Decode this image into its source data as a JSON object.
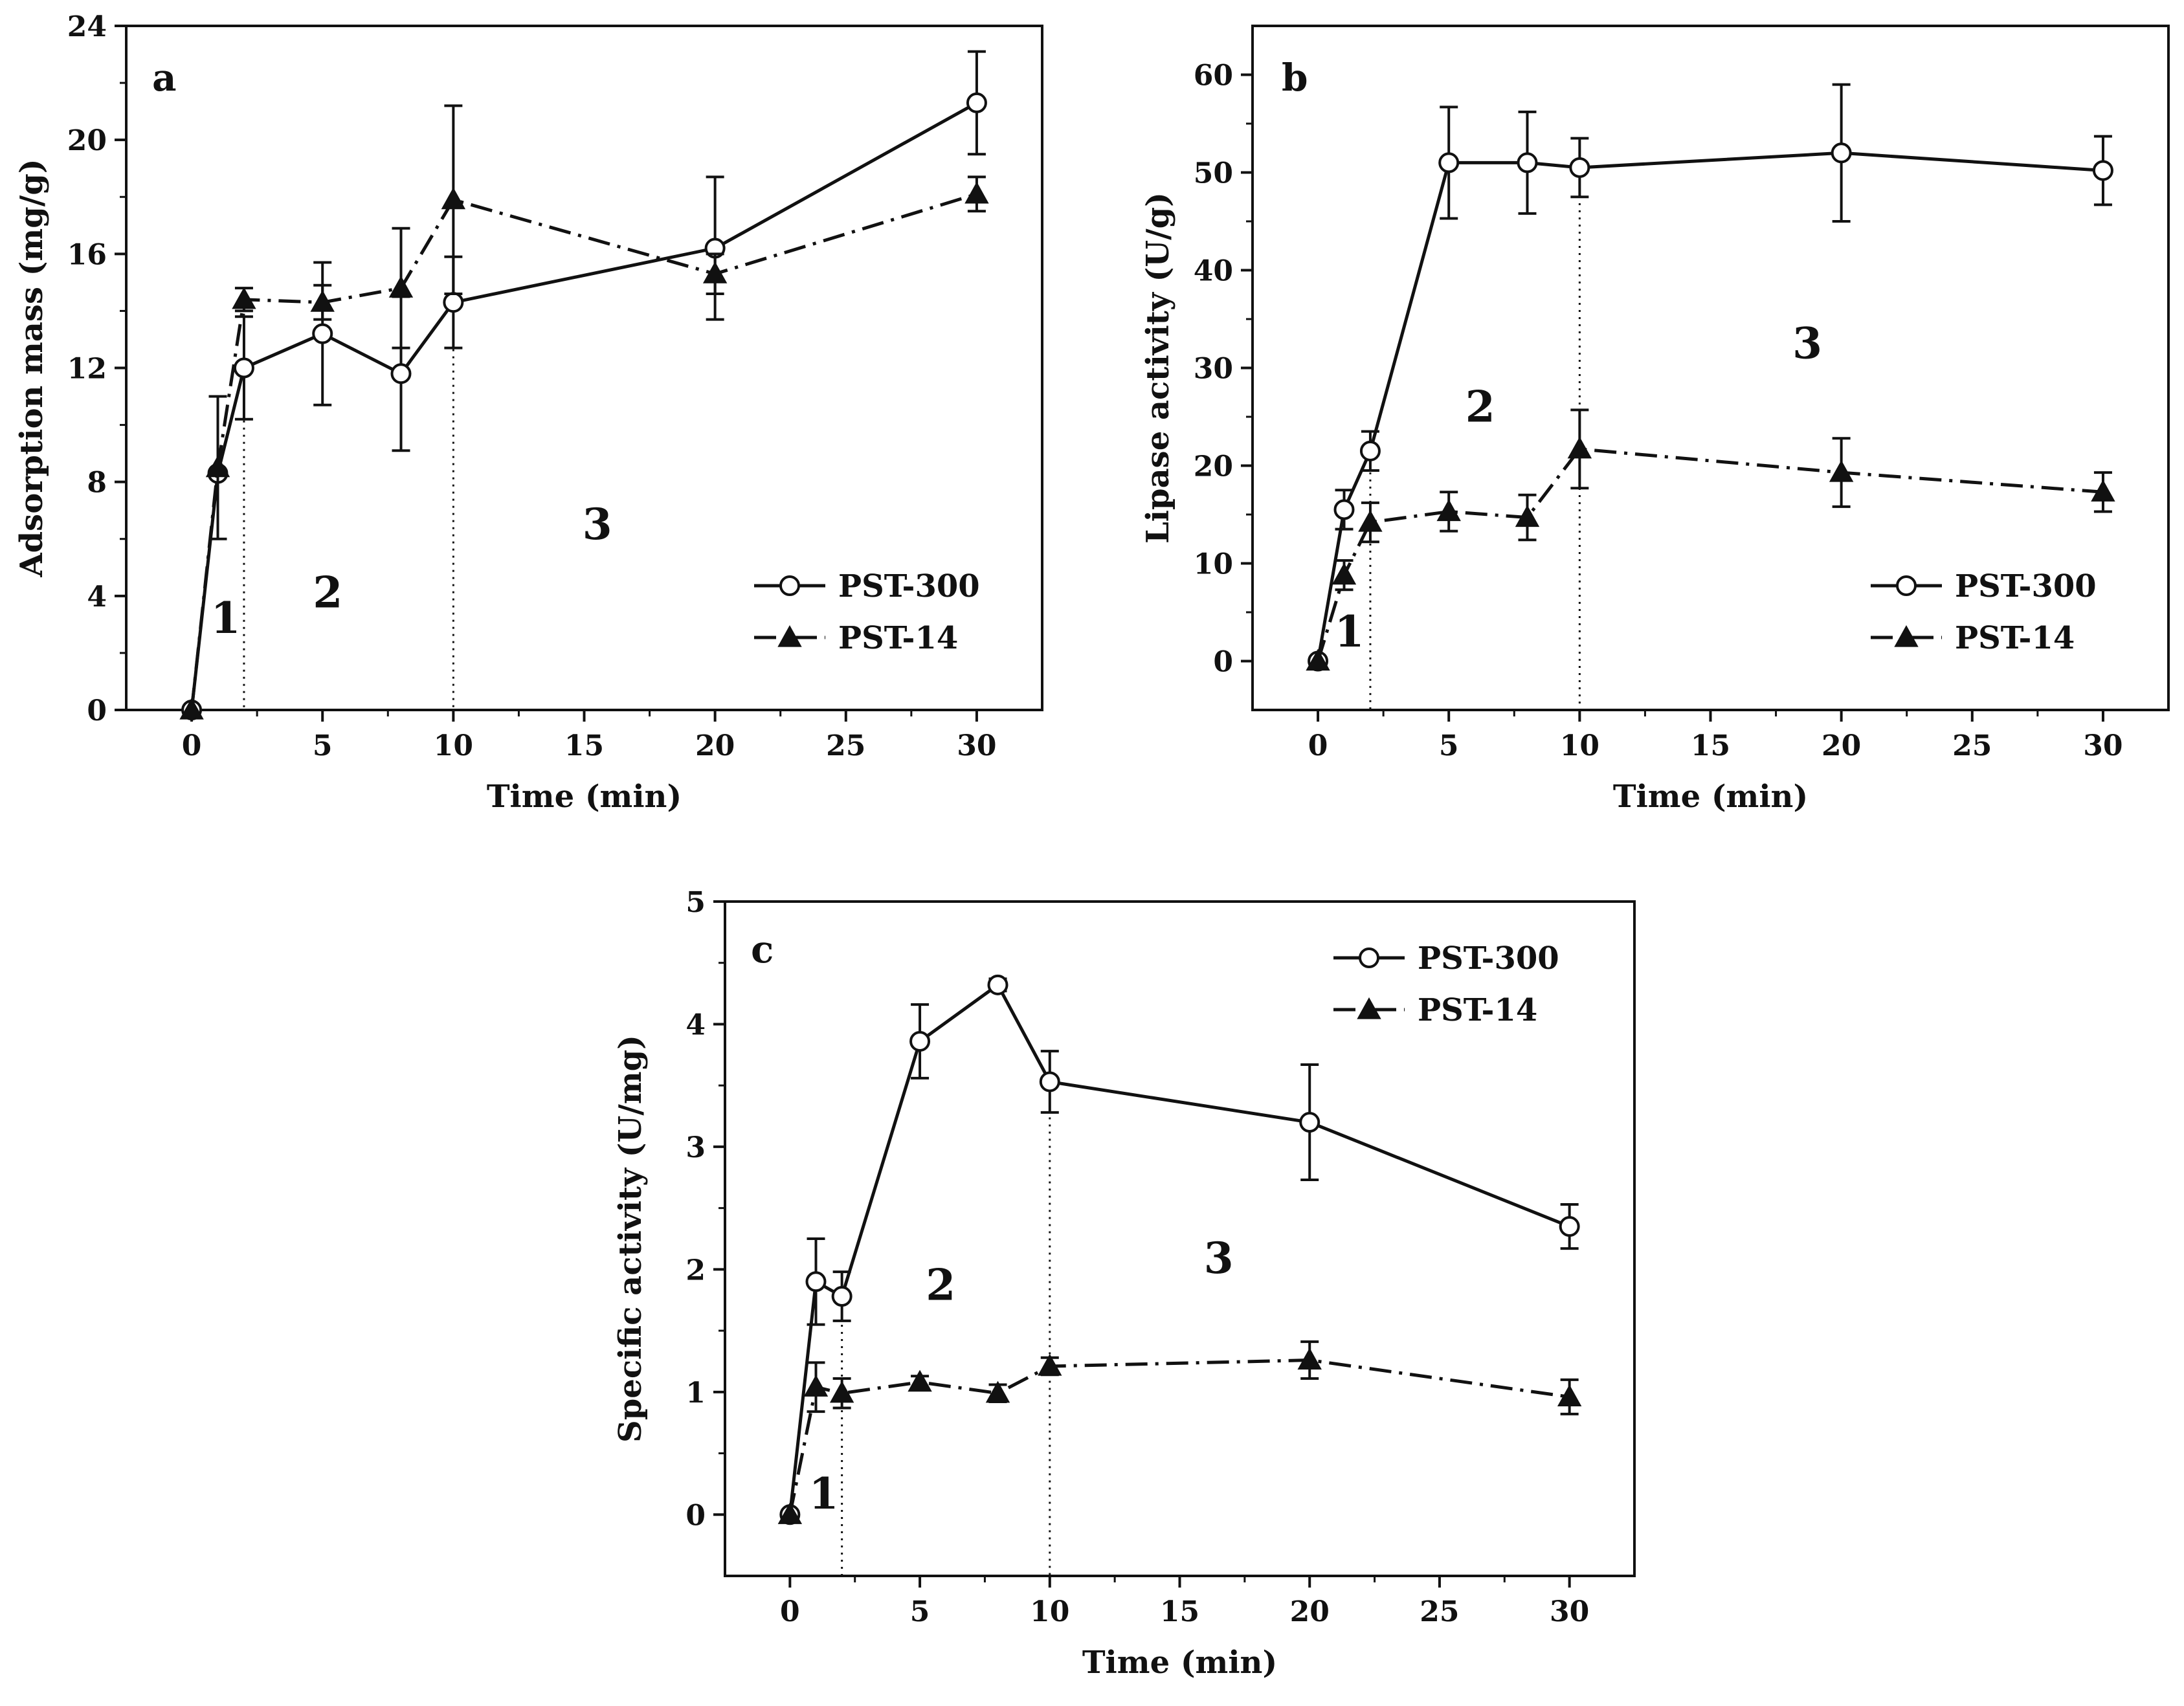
{
  "chart_data": [
    {
      "type": "line",
      "panel": "a",
      "xlabel": "Time (min)",
      "ylabel": "Adsorption mass (mg/g)",
      "xlim": [
        -2.5,
        32.5
      ],
      "ylim": [
        0,
        24
      ],
      "xticks": [
        0,
        5,
        10,
        15,
        20,
        25,
        30
      ],
      "yticks": [
        0,
        4,
        8,
        12,
        16,
        20,
        24
      ],
      "grid": false,
      "legend_position": "bottom-right",
      "phase_lines_x": [
        2,
        10
      ],
      "regions": [
        {
          "label": "1",
          "x": 1.3,
          "y": 2.7
        },
        {
          "label": "2",
          "x": 5.2,
          "y": 3.6
        },
        {
          "label": "3",
          "x": 15.5,
          "y": 6.0
        }
      ],
      "series": [
        {
          "name": "PST-300",
          "marker": "open-circle",
          "line": "solid",
          "x": [
            0,
            1,
            2,
            5,
            8,
            10,
            20,
            30
          ],
          "y": [
            0,
            8.3,
            12.0,
            13.2,
            11.8,
            14.3,
            16.2,
            21.3
          ],
          "err": [
            0,
            0,
            1.8,
            2.5,
            2.7,
            1.6,
            2.5,
            1.8
          ]
        },
        {
          "name": "PST-14",
          "marker": "filled-triangle",
          "line": "dash-dot",
          "x": [
            0,
            1,
            2,
            5,
            8,
            10,
            20,
            30
          ],
          "y": [
            0,
            8.5,
            14.4,
            14.3,
            14.8,
            17.9,
            15.3,
            18.1
          ],
          "err": [
            0,
            2.5,
            0.4,
            0.6,
            2.1,
            3.3,
            0.7,
            0.6
          ]
        }
      ]
    },
    {
      "type": "line",
      "panel": "b",
      "xlabel": "Time (min)",
      "ylabel": "Lipase activity (U/g)",
      "xlim": [
        -2.5,
        32.5
      ],
      "ylim": [
        -5,
        65
      ],
      "xticks": [
        0,
        5,
        10,
        15,
        20,
        25,
        30
      ],
      "yticks": [
        0,
        10,
        20,
        30,
        40,
        50,
        60
      ],
      "grid": false,
      "legend_position": "bottom-right",
      "phase_lines_x": [
        2,
        10
      ],
      "regions": [
        {
          "label": "1",
          "x": 1.2,
          "y": 1.5
        },
        {
          "label": "2",
          "x": 6.2,
          "y": 24.5
        },
        {
          "label": "3",
          "x": 18.7,
          "y": 31.0
        }
      ],
      "series": [
        {
          "name": "PST-300",
          "marker": "open-circle",
          "line": "solid",
          "x": [
            0,
            1,
            2,
            5,
            8,
            10,
            20,
            30
          ],
          "y": [
            0,
            15.5,
            21.5,
            51.0,
            51.0,
            50.5,
            52.0,
            50.2
          ],
          "err": [
            0,
            2.0,
            2.0,
            5.7,
            5.2,
            3.0,
            7.0,
            3.5
          ]
        },
        {
          "name": "PST-14",
          "marker": "filled-triangle",
          "line": "dash-dot",
          "x": [
            0,
            1,
            2,
            5,
            8,
            10,
            20,
            30
          ],
          "y": [
            0,
            8.8,
            14.2,
            15.3,
            14.7,
            21.7,
            19.3,
            17.3
          ],
          "err": [
            0,
            1.5,
            2.0,
            2.0,
            2.3,
            4.0,
            3.5,
            2.0
          ]
        }
      ]
    },
    {
      "type": "line",
      "panel": "c",
      "xlabel": "Time (min)",
      "ylabel": "Specific activity (U/mg)",
      "xlim": [
        -2.5,
        32.5
      ],
      "ylim": [
        -0.5,
        5
      ],
      "xticks": [
        0,
        5,
        10,
        15,
        20,
        25,
        30
      ],
      "yticks": [
        0,
        1,
        2,
        3,
        4,
        5
      ],
      "grid": false,
      "legend_position": "top-right",
      "phase_lines_x": [
        2,
        10
      ],
      "regions": [
        {
          "label": "1",
          "x": 1.3,
          "y": 0.05
        },
        {
          "label": "2",
          "x": 5.8,
          "y": 1.75
        },
        {
          "label": "3",
          "x": 16.5,
          "y": 1.97
        }
      ],
      "series": [
        {
          "name": "PST-300",
          "marker": "open-circle",
          "line": "solid",
          "x": [
            0,
            1,
            2,
            5,
            8,
            10,
            20,
            30
          ],
          "y": [
            0,
            1.9,
            1.78,
            3.86,
            4.32,
            3.53,
            3.2,
            2.35
          ],
          "err": [
            0,
            0.35,
            0.2,
            0.3,
            0.05,
            0.25,
            0.47,
            0.18
          ]
        },
        {
          "name": "PST-14",
          "marker": "filled-triangle",
          "line": "dash-dot",
          "x": [
            0,
            1,
            2,
            5,
            8,
            10,
            20,
            30
          ],
          "y": [
            0,
            1.04,
            0.99,
            1.08,
            0.99,
            1.21,
            1.26,
            0.96
          ],
          "err": [
            0,
            0.2,
            0.12,
            0.05,
            0.07,
            0.07,
            0.15,
            0.14
          ]
        }
      ]
    }
  ],
  "colors": {
    "ink": "#111111",
    "marker_fill_open": "#ffffff"
  }
}
